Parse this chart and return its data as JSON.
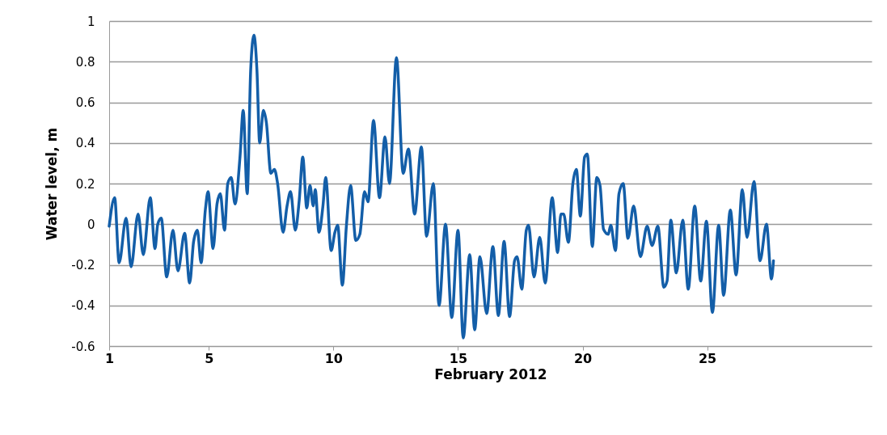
{
  "chart_data": {
    "type": "line",
    "xlabel": "February 2012",
    "ylabel": "Water level, m",
    "xlim": [
      1,
      31.6
    ],
    "xticks": [
      1,
      5,
      10,
      15,
      20,
      25
    ],
    "ylim": [
      -0.6,
      1
    ],
    "yticks": [
      -0.6,
      -0.4,
      -0.2,
      0,
      0.2,
      0.4,
      0.6,
      0.8,
      1
    ],
    "grid": "y",
    "marker": "none",
    "line_style": "solid",
    "series": [
      {
        "color": "#135ea8",
        "x": [
          1.0,
          1.22,
          1.4,
          1.68,
          1.88,
          2.16,
          2.37,
          2.65,
          2.84,
          2.95,
          3.09,
          3.31,
          3.56,
          3.76,
          4.03,
          4.23,
          4.39,
          4.54,
          4.69,
          4.86,
          4.97,
          5.17,
          5.33,
          5.46,
          5.63,
          5.76,
          5.9,
          6.05,
          6.25,
          6.38,
          6.54,
          6.68,
          6.81,
          6.93,
          7.04,
          7.19,
          7.31,
          7.49,
          7.63,
          7.76,
          7.98,
          8.14,
          8.28,
          8.47,
          8.63,
          8.77,
          8.93,
          9.06,
          9.19,
          9.27,
          9.42,
          9.58,
          9.69,
          9.91,
          10.06,
          10.17,
          10.36,
          10.52,
          10.69,
          10.9,
          11.06,
          11.25,
          11.39,
          11.61,
          11.85,
          12.07,
          12.25,
          12.53,
          12.8,
          13.01,
          13.26,
          13.53,
          13.74,
          14.01,
          14.24,
          14.5,
          14.75,
          15.0,
          15.21,
          15.47,
          15.67,
          15.88,
          16.15,
          16.4,
          16.62,
          16.85,
          17.07,
          17.27,
          17.37,
          17.56,
          17.74,
          17.83,
          18.05,
          18.28,
          18.5,
          18.78,
          19.0,
          19.13,
          19.24,
          19.43,
          19.61,
          19.75,
          19.91,
          20.08,
          20.19,
          20.39,
          20.57,
          20.7,
          20.84,
          21.03,
          21.13,
          21.32,
          21.46,
          21.63,
          21.82,
          22.05,
          22.32,
          22.59,
          22.79,
          23.02,
          23.26,
          23.39,
          23.54,
          23.76,
          24.02,
          24.24,
          24.5,
          24.74,
          24.97,
          25.21,
          25.46,
          25.66,
          25.93,
          26.16,
          26.41,
          26.6,
          26.88,
          27.12,
          27.38,
          27.58,
          27.66
        ],
        "values": [
          -0.01,
          0.13,
          -0.19,
          0.03,
          -0.21,
          0.05,
          -0.15,
          0.13,
          -0.12,
          0,
          0.03,
          -0.26,
          -0.03,
          -0.23,
          -0.045,
          -0.29,
          -0.085,
          -0.03,
          -0.19,
          0.07,
          0.16,
          -0.12,
          0.1,
          0.15,
          -0.03,
          0.2,
          0.23,
          0.1,
          0.33,
          0.56,
          0.15,
          0.76,
          0.93,
          0.76,
          0.4,
          0.56,
          0.5,
          0.25,
          0.27,
          0.2,
          -0.04,
          0.09,
          0.16,
          -0.03,
          0.12,
          0.33,
          0.08,
          0.19,
          0.09,
          0.17,
          -0.04,
          0.09,
          0.23,
          -0.13,
          -0.04,
          -0.005,
          -0.3,
          -0.01,
          0.19,
          -0.08,
          -0.05,
          0.16,
          0.11,
          0.51,
          0.13,
          0.43,
          0.2,
          0.82,
          0.25,
          0.37,
          0.05,
          0.38,
          -0.06,
          0.2,
          -0.4,
          0,
          -0.46,
          -0.03,
          -0.56,
          -0.15,
          -0.52,
          -0.16,
          -0.44,
          -0.11,
          -0.45,
          -0.085,
          -0.455,
          -0.18,
          -0.16,
          -0.32,
          -0.03,
          -0.005,
          -0.26,
          -0.065,
          -0.29,
          0.13,
          -0.14,
          0.05,
          0.05,
          -0.09,
          0.2,
          0.27,
          0.04,
          0.33,
          0.345,
          -0.11,
          0.23,
          0.19,
          -0.025,
          -0.05,
          -0.005,
          -0.13,
          0.15,
          0.2,
          -0.07,
          0.09,
          -0.16,
          -0.01,
          -0.105,
          -0.01,
          -0.31,
          -0.28,
          0.02,
          -0.24,
          0.02,
          -0.32,
          0.09,
          -0.28,
          0.015,
          -0.435,
          -0.005,
          -0.35,
          0.07,
          -0.25,
          0.17,
          -0.065,
          0.21,
          -0.18,
          0,
          -0.27,
          -0.18
        ]
      }
    ]
  }
}
